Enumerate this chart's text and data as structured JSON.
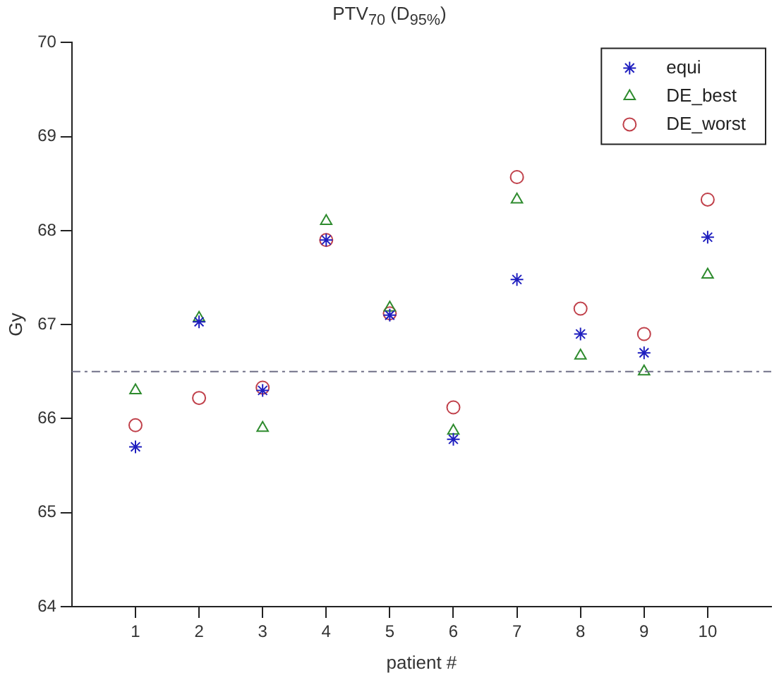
{
  "chart_data": {
    "type": "scatter",
    "title": "PTV$_{70}$ (D$_{95%}$)",
    "xlabel": "patient #",
    "ylabel": "Gy",
    "x": [
      1,
      2,
      3,
      4,
      5,
      6,
      7,
      8,
      9,
      10
    ],
    "series": [
      {
        "name": "equi",
        "color": "#1f1fbf",
        "marker": "cross",
        "values": [
          65.7,
          67.03,
          66.3,
          67.9,
          67.1,
          65.78,
          67.48,
          66.9,
          66.7,
          67.93
        ]
      },
      {
        "name": "DE_best",
        "color": "#2e8b2e",
        "marker": "triangle",
        "values": [
          66.3,
          67.07,
          65.9,
          68.1,
          67.18,
          65.87,
          68.33,
          66.67,
          66.5,
          67.53
        ]
      },
      {
        "name": "DE_worst",
        "color": "#c0404a",
        "marker": "circle",
        "values": [
          65.93,
          66.22,
          66.33,
          67.9,
          67.12,
          66.12,
          68.57,
          67.17,
          66.9,
          68.33
        ]
      }
    ],
    "xlim": [
      0,
      11
    ],
    "xticks": [
      1,
      2,
      3,
      4,
      5,
      6,
      7,
      8,
      9,
      10
    ],
    "ylim": [
      64,
      70
    ],
    "yticks": [
      64,
      65,
      66,
      67,
      68,
      69,
      70
    ],
    "ref_lines": [
      {
        "axis": "y",
        "value": 66.5,
        "color": "#707088",
        "line_style": "dashdot"
      }
    ],
    "legend": "top right",
    "grid": false
  }
}
